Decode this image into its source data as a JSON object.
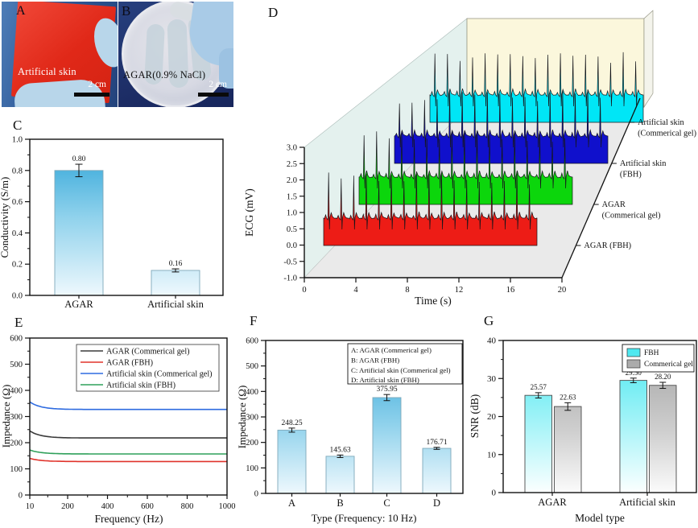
{
  "letters": {
    "a": "A",
    "b": "B",
    "c": "C",
    "d": "D",
    "e": "E",
    "f": "F",
    "g": "G"
  },
  "photos": {
    "a": {
      "caption": "Artificial skin",
      "scale_label": "2 cm"
    },
    "b": {
      "caption": "AGAR(0.9% NaCl)",
      "scale_label": "2 cm"
    }
  },
  "colors": {
    "bar_gradient_blue": [
      "#25a0d6",
      "#90d2ec",
      "#eef8fd"
    ],
    "bar_gradient_cyan": [
      "#3fe6ef",
      "#fbffff"
    ],
    "bar_gradient_gray": [
      "#9f9f9f",
      "#cfcfcf",
      "#fbfbfb"
    ],
    "ecg_red": "#ed1c16",
    "ecg_green": "#0cd60c",
    "ecg_blue": "#1010cc",
    "ecg_cyan": "#00e6f6",
    "back_wall": "#fbf7dc",
    "side_wall": "#e4f1ee",
    "floor": "#eaeaea"
  },
  "chart_data": [
    {
      "id": "c",
      "type": "bar",
      "ylabel": "Conductivity (S/m)",
      "categories": [
        "AGAR",
        "Artificial skin"
      ],
      "values": [
        0.8,
        0.16
      ],
      "errors": [
        0.04,
        0.01
      ],
      "bar_labels": [
        "0.80",
        "0.16"
      ],
      "ylim": [
        0,
        1.0
      ],
      "yticks": [
        0.0,
        0.2,
        0.4,
        0.6,
        0.8,
        1.0
      ]
    },
    {
      "id": "d",
      "type": "line3d-waterfall",
      "ylabel": "ECG (mV)",
      "xlabel": "Time (s)",
      "ylim": [
        -1.0,
        3.0
      ],
      "yticks": [
        3.0,
        2.5,
        2.0,
        1.5,
        1.0,
        0.5,
        0.0,
        -0.5,
        -1.0
      ],
      "xticks": [
        0,
        4,
        8,
        12,
        16,
        20
      ],
      "beats_per_trace": 17,
      "series": [
        {
          "name": "AGAR (FBH)",
          "label_lines": [
            "AGAR (FBH)"
          ],
          "color": "#ed1c16"
        },
        {
          "name": "AGAR (Commerical gel)",
          "label_lines": [
            "AGAR",
            "(Commerical gel)"
          ],
          "color": "#0cd60c"
        },
        {
          "name": "Artificial skin (FBH)",
          "label_lines": [
            "Artificial skin",
            "(FBH)"
          ],
          "color": "#1010cc"
        },
        {
          "name": "Artificial skin (Commerical gel)",
          "label_lines": [
            "Artificial skin",
            "(Commerical gel)"
          ],
          "color": "#00e6f6"
        }
      ]
    },
    {
      "id": "e",
      "type": "line",
      "xlabel": "Frequency (Hz)",
      "ylabel": "Impedance (Ω)",
      "xlim": [
        10,
        1000
      ],
      "ylim": [
        0,
        600
      ],
      "xticks": [
        10,
        200,
        400,
        600,
        800,
        1000
      ],
      "yticks": [
        0,
        100,
        200,
        300,
        400,
        500,
        600
      ],
      "legend_position": "top-center",
      "series": [
        {
          "name": "AGAR (Commerical gel)",
          "color": "#3a3a3a",
          "start": 245,
          "end": 218
        },
        {
          "name": "AGAR (FBH)",
          "color": "#e0332b",
          "start": 140,
          "end": 128
        },
        {
          "name": "Artificial skin (Commerical gel)",
          "color": "#2e6be0",
          "start": 356,
          "end": 327
        },
        {
          "name": "Artificial skin (FBH)",
          "color": "#2fa05a",
          "start": 172,
          "end": 157
        }
      ]
    },
    {
      "id": "f",
      "type": "bar",
      "xlabel": "Type (Frequency: 10 Hz)",
      "ylabel": "Impedance (Ω)",
      "categories": [
        "A",
        "B",
        "C",
        "D"
      ],
      "values": [
        248.25,
        145.63,
        375.95,
        176.71
      ],
      "errors": [
        8,
        5,
        12,
        4
      ],
      "bar_labels": [
        "248.25",
        "145.63",
        "375.95",
        "176.71"
      ],
      "ylim": [
        0,
        600
      ],
      "yticks": [
        0,
        100,
        200,
        300,
        400,
        500,
        600
      ],
      "legend": [
        "A: AGAR (Commerical gel)",
        "B: AGAR (FBH)",
        "C: Artificial skin (Commerical gel)",
        "D: Artificial skin (FBH)"
      ]
    },
    {
      "id": "g",
      "type": "grouped-bar",
      "xlabel": "Model type",
      "ylabel": "SNR (dB)",
      "categories": [
        "AGAR",
        "Artificial skin"
      ],
      "ylim": [
        0,
        40
      ],
      "yticks": [
        0,
        10,
        20,
        30,
        40
      ],
      "series": [
        {
          "name": "FBH",
          "values": [
            25.57,
            29.5
          ],
          "errors": [
            0.7,
            0.6
          ],
          "bar_labels": [
            "25.57",
            "29.50"
          ],
          "fill": "cyan"
        },
        {
          "name": "Commerical gel",
          "values": [
            22.63,
            28.2
          ],
          "errors": [
            1.0,
            0.8
          ],
          "bar_labels": [
            "22.63",
            "28.20"
          ],
          "fill": "gray"
        }
      ]
    }
  ]
}
